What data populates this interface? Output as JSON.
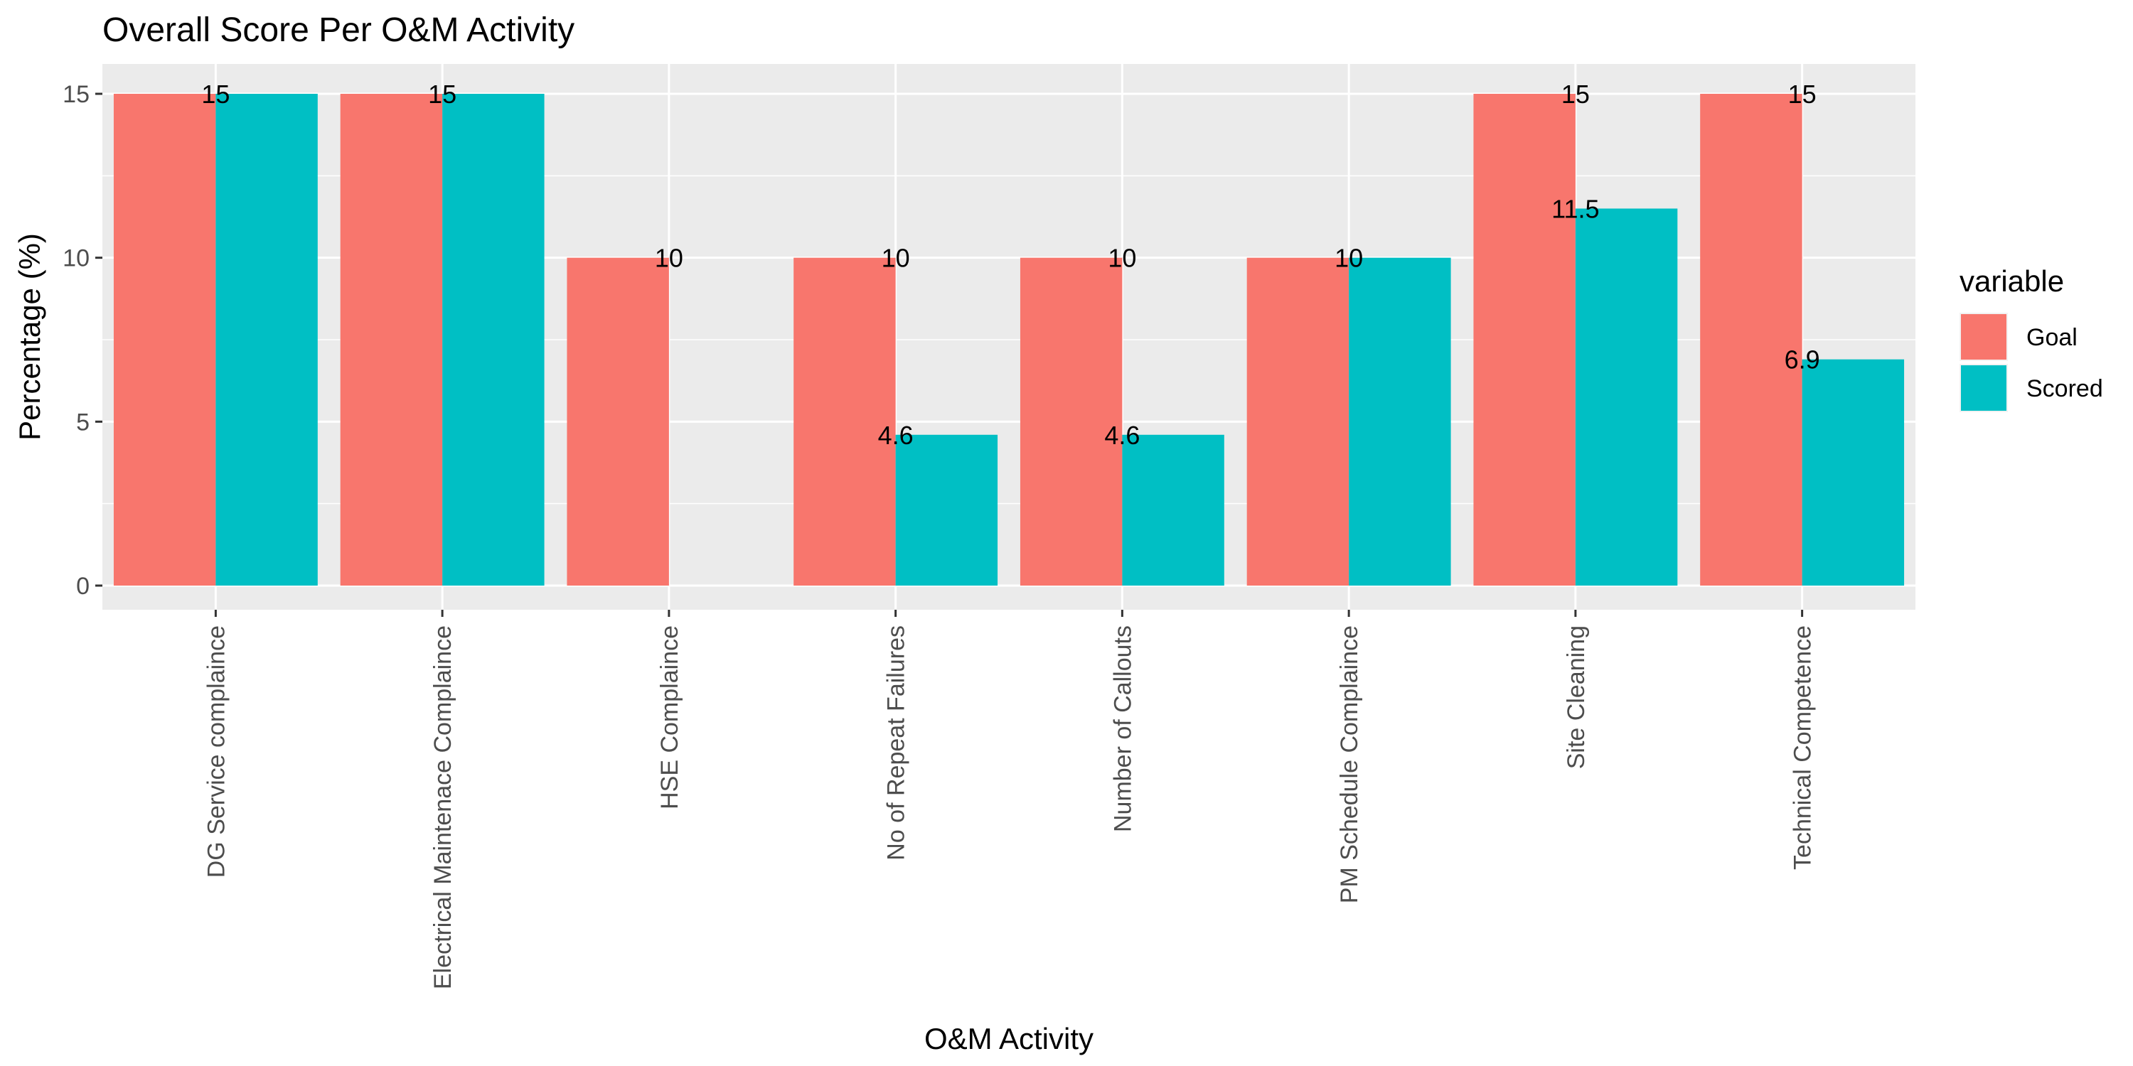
{
  "chart_data": {
    "type": "bar",
    "title": "Overall Score Per O&M Activity",
    "xlabel": "O&M Activity",
    "ylabel": "Percentage (%)",
    "ylim": [
      0,
      15.7
    ],
    "yticks": [
      0,
      5,
      10,
      15
    ],
    "grid": true,
    "legend": {
      "title": "variable",
      "position": "right"
    },
    "categories": [
      "DG Service complaince",
      "Electrical Maintenace Complaince",
      "HSE Complaince",
      "No of Repeat Failures",
      "Number of Callouts",
      "PM Schedule Complaince",
      "Site Cleaning",
      "Technical Competence"
    ],
    "series": [
      {
        "name": "Goal",
        "color": "#F8766D",
        "values": [
          15,
          15,
          10,
          10,
          10,
          10,
          15,
          15
        ]
      },
      {
        "name": "Scored",
        "color": "#00BFC4",
        "values": [
          15,
          15,
          0,
          4.6,
          4.6,
          10,
          11.5,
          6.9
        ]
      }
    ],
    "data_labels": [
      {
        "category": "DG Service complaince",
        "text": "15",
        "value": 15
      },
      {
        "category": "Electrical Maintenace Complaince",
        "text": "15",
        "value": 15
      },
      {
        "category": "HSE Complaince",
        "text": "10",
        "value": 10
      },
      {
        "category": "No of Repeat Failures",
        "text": "10",
        "value": 10
      },
      {
        "category": "No of Repeat Failures",
        "text": "4.6",
        "value": 4.6
      },
      {
        "category": "Number of Callouts",
        "text": "10",
        "value": 10
      },
      {
        "category": "Number of Callouts",
        "text": "4.6",
        "value": 4.6
      },
      {
        "category": "PM Schedule Complaince",
        "text": "10",
        "value": 10
      },
      {
        "category": "Site Cleaning",
        "text": "15",
        "value": 15
      },
      {
        "category": "Site Cleaning",
        "text": "11.5",
        "value": 11.5
      },
      {
        "category": "Technical Competence",
        "text": "15",
        "value": 15
      },
      {
        "category": "Technical Competence",
        "text": "6.9",
        "value": 6.9
      }
    ]
  }
}
